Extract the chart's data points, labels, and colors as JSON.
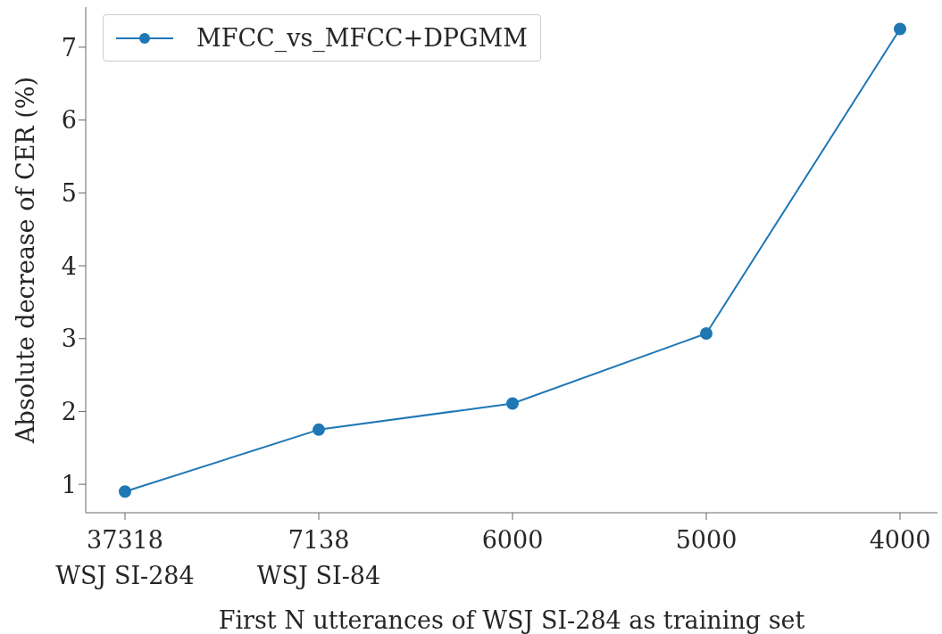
{
  "chart_data": {
    "type": "line",
    "xlabel": "First N utterances of WSJ SI-284 as training set",
    "ylabel": "Absolute decrease of CER (%)",
    "categories": [
      "37318\nWSJ SI-284",
      "7138\nWSJ SI-84",
      "6000",
      "5000",
      "4000"
    ],
    "series": [
      {
        "name": "MFCC_vs_MFCC+DPGMM",
        "color": "#1f77b4",
        "values": [
          0.9,
          1.75,
          2.11,
          3.07,
          7.25
        ]
      }
    ],
    "ylim": [
      0.61,
      7.55
    ],
    "yticks": [
      1,
      2,
      3,
      4,
      5,
      6,
      7
    ],
    "grid": false,
    "legend": "top left",
    "marker": "circle",
    "line_style": "solid"
  }
}
